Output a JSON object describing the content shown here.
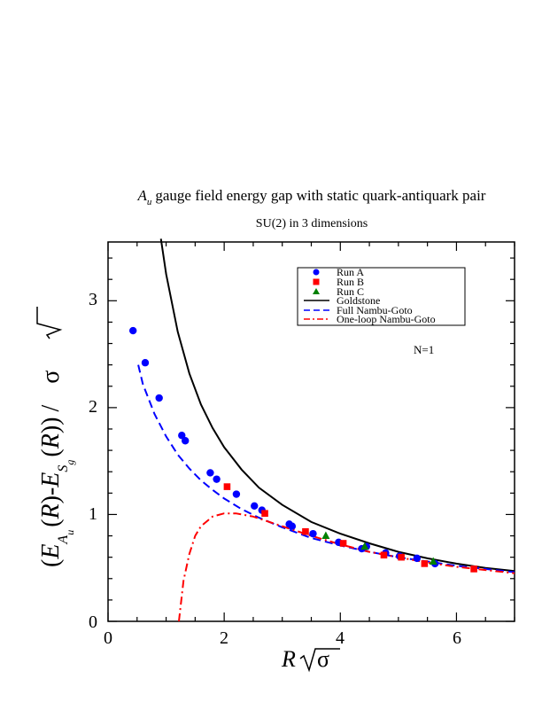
{
  "chart_data": {
    "type": "scatter",
    "title": {
      "main_symbol": "A",
      "main_symbol_sub": "u",
      "main_rest": "gauge field energy gap with static quark-antiquark pair",
      "subtitle": "SU(2) in 3 dimensions"
    },
    "xlabel": {
      "var": "R",
      "sqrt_of": "σ"
    },
    "ylabel": {
      "open": "(",
      "e1": "E",
      "e1_sub": "A",
      "e1_subsub": "u",
      "paren1": "(",
      "r1": "R",
      "close1": ")",
      "minus": "-",
      "e2": "E",
      "e2_sub": "S",
      "e2_subsub": "g",
      "paren2": "(",
      "r2": "R",
      "close2": ")",
      "close": ")",
      "slash": "/",
      "sqrt_of": "σ"
    },
    "xlim": [
      0,
      7
    ],
    "ylim": [
      0,
      3.55
    ],
    "xticks": [
      "0",
      "2",
      "4",
      "6"
    ],
    "yticks": [
      "0",
      "1",
      "2",
      "3"
    ],
    "annotation": "N=1",
    "legend_position": "top-right",
    "series": [
      {
        "name": "Run A",
        "kind": "points",
        "marker": "circle",
        "color": "#0000ff",
        "x": [
          0.43,
          0.64,
          0.88,
          1.27,
          1.33,
          1.76,
          1.87,
          2.21,
          2.52,
          2.65,
          3.12,
          3.17,
          3.53,
          3.97,
          4.37,
          4.45,
          4.78,
          5.02,
          5.32,
          5.63
        ],
        "y": [
          2.72,
          2.42,
          2.09,
          1.74,
          1.69,
          1.39,
          1.33,
          1.19,
          1.08,
          1.04,
          0.91,
          0.89,
          0.82,
          0.74,
          0.68,
          0.7,
          0.64,
          0.61,
          0.59,
          0.54
        ]
      },
      {
        "name": "Run B",
        "kind": "points",
        "marker": "square",
        "color": "#ff0000",
        "x": [
          2.05,
          2.7,
          3.4,
          4.05,
          4.75,
          5.05,
          5.45,
          6.3
        ],
        "y": [
          1.26,
          1.01,
          0.84,
          0.73,
          0.62,
          0.6,
          0.54,
          0.49
        ]
      },
      {
        "name": "Run C",
        "kind": "points",
        "marker": "triangle",
        "color": "#008000",
        "x": [
          3.75,
          4.42,
          5.6
        ],
        "y": [
          0.8,
          0.7,
          0.56
        ]
      },
      {
        "name": "Goldstone",
        "kind": "line",
        "style": "solid",
        "color": "#000000",
        "x": [
          0.91,
          1.0,
          1.2,
          1.4,
          1.6,
          1.8,
          2.0,
          2.3,
          2.6,
          3.0,
          3.5,
          4.0,
          4.5,
          5.0,
          5.5,
          6.0,
          6.5,
          7.0
        ],
        "y": [
          3.58,
          3.25,
          2.71,
          2.32,
          2.03,
          1.81,
          1.63,
          1.42,
          1.25,
          1.09,
          0.93,
          0.82,
          0.73,
          0.65,
          0.59,
          0.54,
          0.5,
          0.47
        ]
      },
      {
        "name": "Full Nambu-Goto",
        "kind": "line",
        "style": "dashed",
        "color": "#0000ff",
        "x": [
          0.52,
          0.6,
          0.8,
          1.0,
          1.2,
          1.4,
          1.6,
          1.8,
          2.0,
          2.3,
          2.6,
          3.0,
          3.5,
          4.0,
          4.5,
          5.0,
          5.5,
          6.0,
          6.5,
          7.0
        ],
        "y": [
          2.4,
          2.22,
          1.94,
          1.73,
          1.56,
          1.43,
          1.32,
          1.23,
          1.15,
          1.05,
          0.97,
          0.88,
          0.78,
          0.71,
          0.65,
          0.6,
          0.56,
          0.52,
          0.49,
          0.46
        ]
      },
      {
        "name": "One-loop Nambu-Goto",
        "kind": "line",
        "style": "dashdot",
        "color": "#ff0000",
        "x": [
          1.22,
          1.3,
          1.4,
          1.5,
          1.6,
          1.8,
          2.0,
          2.2,
          2.5,
          3.0,
          3.5,
          4.0,
          4.5,
          5.0,
          5.5,
          6.0,
          6.5,
          7.0
        ],
        "y": [
          0.0,
          0.38,
          0.63,
          0.8,
          0.89,
          0.98,
          1.01,
          1.01,
          0.98,
          0.89,
          0.8,
          0.72,
          0.65,
          0.6,
          0.55,
          0.51,
          0.48,
          0.45
        ]
      }
    ]
  }
}
